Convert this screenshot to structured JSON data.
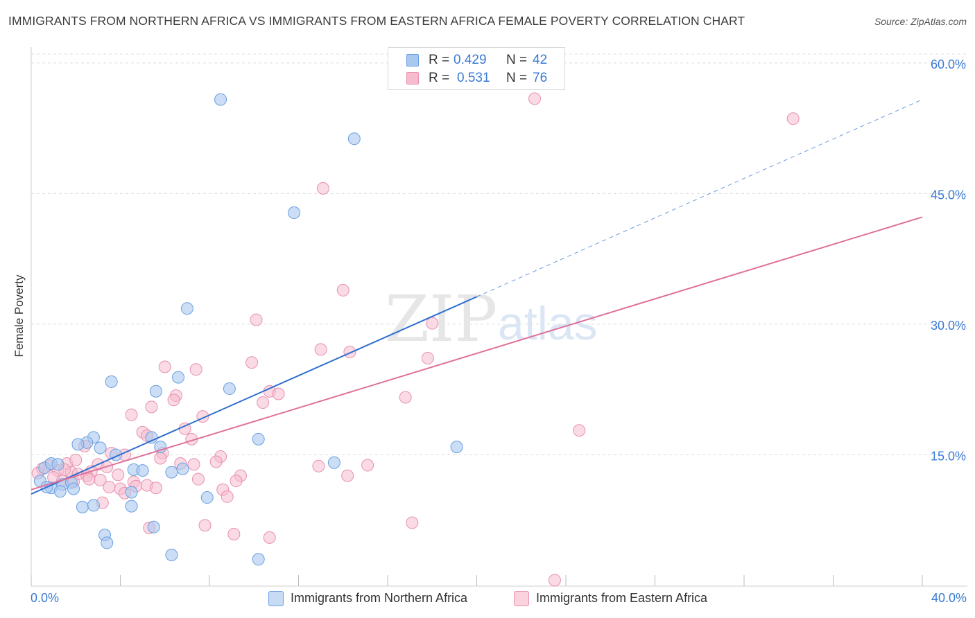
{
  "title": "IMMIGRANTS FROM NORTHERN AFRICA VS IMMIGRANTS FROM EASTERN AFRICA FEMALE POVERTY CORRELATION CHART",
  "source": "Source: ZipAtlas.com",
  "watermark": {
    "zip": "ZIP",
    "atlas": "atlas"
  },
  "legend_top": {
    "rows": [
      {
        "r_label": "R =",
        "r_value": "0.429",
        "n_label": "N =",
        "n_value": "42"
      },
      {
        "r_label": "R =",
        "r_value": "0.531",
        "n_label": "N =",
        "n_value": "76"
      }
    ]
  },
  "legend_bottom": {
    "items": [
      {
        "label": "Immigrants from Northern Africa"
      },
      {
        "label": "Immigrants from Eastern Africa"
      }
    ]
  },
  "colors": {
    "blue_fill": "#a9c8f0",
    "blue_stroke": "#6a9fe0",
    "blue_line": "#2f6fd0",
    "pink_fill": "#f6bccd",
    "pink_stroke": "#e891ad",
    "pink_line": "#e0709a",
    "tick_label": "#3a7bd5",
    "grid": "#dcdcdc"
  },
  "chart_data": {
    "type": "scatter",
    "title": "IMMIGRANTS FROM NORTHERN AFRICA VS IMMIGRANTS FROM EASTERN AFRICA FEMALE POVERTY CORRELATION CHART",
    "xlabel": "",
    "ylabel": "Female Poverty",
    "xlim": [
      0,
      40
    ],
    "ylim": [
      0,
      61.5
    ],
    "x_ticks": [
      0,
      40
    ],
    "x_tick_labels": [
      "0.0%",
      "40.0%"
    ],
    "y_ticks": [
      15,
      30,
      45,
      60
    ],
    "y_tick_labels": [
      "15.0%",
      "30.0%",
      "45.0%",
      "60.0%"
    ],
    "grid": true,
    "legend_position": "top-center",
    "series": [
      {
        "name": "Immigrants from Northern Africa",
        "r": 0.429,
        "n": 42,
        "trend": {
          "x0": 0,
          "y0": 10.5,
          "x1": 40,
          "y1": 55.8,
          "solid_until_x": 20
        },
        "points": [
          [
            8.5,
            55.8
          ],
          [
            14.5,
            51.3
          ],
          [
            11.8,
            42.8
          ],
          [
            7.0,
            31.8
          ],
          [
            3.6,
            23.4
          ],
          [
            5.6,
            22.3
          ],
          [
            6.6,
            23.9
          ],
          [
            8.9,
            22.6
          ],
          [
            2.8,
            17.0
          ],
          [
            5.4,
            17.0
          ],
          [
            10.2,
            16.8
          ],
          [
            2.5,
            16.4
          ],
          [
            2.1,
            16.2
          ],
          [
            3.1,
            15.8
          ],
          [
            5.8,
            15.9
          ],
          [
            3.8,
            15.0
          ],
          [
            19.1,
            15.9
          ],
          [
            13.6,
            14.1
          ],
          [
            6.8,
            13.4
          ],
          [
            4.6,
            13.3
          ],
          [
            5.0,
            13.2
          ],
          [
            6.3,
            13.0
          ],
          [
            0.6,
            13.5
          ],
          [
            0.9,
            14.0
          ],
          [
            1.2,
            13.9
          ],
          [
            0.4,
            12.0
          ],
          [
            1.4,
            11.6
          ],
          [
            1.8,
            11.8
          ],
          [
            0.9,
            11.2
          ],
          [
            0.7,
            11.3
          ],
          [
            1.3,
            10.8
          ],
          [
            1.9,
            11.1
          ],
          [
            4.5,
            10.7
          ],
          [
            7.9,
            10.1
          ],
          [
            2.3,
            9.0
          ],
          [
            2.8,
            9.2
          ],
          [
            4.5,
            9.1
          ],
          [
            5.5,
            6.7
          ],
          [
            3.3,
            5.8
          ],
          [
            3.4,
            4.9
          ],
          [
            6.3,
            3.5
          ],
          [
            10.2,
            3.0
          ]
        ]
      },
      {
        "name": "Immigrants from Eastern Africa",
        "r": 0.531,
        "n": 76,
        "trend": {
          "x0": 0,
          "y0": 11.0,
          "x1": 40,
          "y1": 42.3
        },
        "points": [
          [
            22.6,
            55.9
          ],
          [
            34.2,
            53.6
          ],
          [
            13.1,
            45.6
          ],
          [
            14.0,
            33.9
          ],
          [
            10.1,
            30.5
          ],
          [
            18.0,
            30.1
          ],
          [
            13.0,
            27.1
          ],
          [
            14.3,
            26.8
          ],
          [
            17.8,
            26.1
          ],
          [
            6.0,
            25.1
          ],
          [
            7.4,
            24.8
          ],
          [
            9.9,
            25.6
          ],
          [
            10.7,
            22.3
          ],
          [
            11.1,
            22.0
          ],
          [
            6.5,
            21.8
          ],
          [
            6.4,
            21.3
          ],
          [
            10.4,
            21.0
          ],
          [
            16.8,
            21.6
          ],
          [
            5.4,
            20.5
          ],
          [
            4.5,
            19.6
          ],
          [
            7.7,
            19.4
          ],
          [
            6.9,
            18.0
          ],
          [
            24.6,
            17.8
          ],
          [
            5.0,
            17.6
          ],
          [
            5.2,
            17.2
          ],
          [
            7.2,
            16.8
          ],
          [
            2.4,
            16.0
          ],
          [
            3.6,
            15.2
          ],
          [
            4.2,
            15.0
          ],
          [
            5.9,
            15.2
          ],
          [
            8.5,
            14.8
          ],
          [
            5.8,
            14.6
          ],
          [
            1.6,
            14.0
          ],
          [
            6.7,
            14.0
          ],
          [
            7.3,
            13.9
          ],
          [
            8.3,
            14.2
          ],
          [
            12.9,
            13.7
          ],
          [
            15.1,
            13.8
          ],
          [
            3.0,
            13.9
          ],
          [
            3.4,
            13.6
          ],
          [
            0.8,
            13.8
          ],
          [
            1.2,
            13.2
          ],
          [
            1.8,
            13.0
          ],
          [
            2.1,
            12.8
          ],
          [
            0.5,
            13.4
          ],
          [
            2.7,
            13.1
          ],
          [
            2.5,
            12.6
          ],
          [
            1.0,
            12.4
          ],
          [
            1.4,
            12.0
          ],
          [
            1.9,
            11.9
          ],
          [
            2.6,
            12.2
          ],
          [
            3.1,
            12.1
          ],
          [
            4.6,
            11.9
          ],
          [
            5.2,
            11.5
          ],
          [
            7.5,
            12.2
          ],
          [
            9.4,
            12.6
          ],
          [
            9.2,
            12.0
          ],
          [
            3.5,
            11.3
          ],
          [
            4.0,
            11.1
          ],
          [
            4.7,
            11.4
          ],
          [
            5.6,
            11.2
          ],
          [
            8.6,
            11.0
          ],
          [
            14.2,
            12.6
          ],
          [
            4.2,
            10.6
          ],
          [
            8.8,
            10.2
          ],
          [
            3.2,
            9.5
          ],
          [
            17.1,
            7.2
          ],
          [
            5.3,
            6.6
          ],
          [
            7.8,
            6.9
          ],
          [
            9.1,
            5.9
          ],
          [
            10.7,
            5.5
          ],
          [
            23.5,
            0.6
          ],
          [
            2.0,
            14.4
          ],
          [
            0.3,
            12.9
          ],
          [
            1.5,
            13.3
          ],
          [
            3.9,
            12.7
          ]
        ]
      }
    ]
  }
}
